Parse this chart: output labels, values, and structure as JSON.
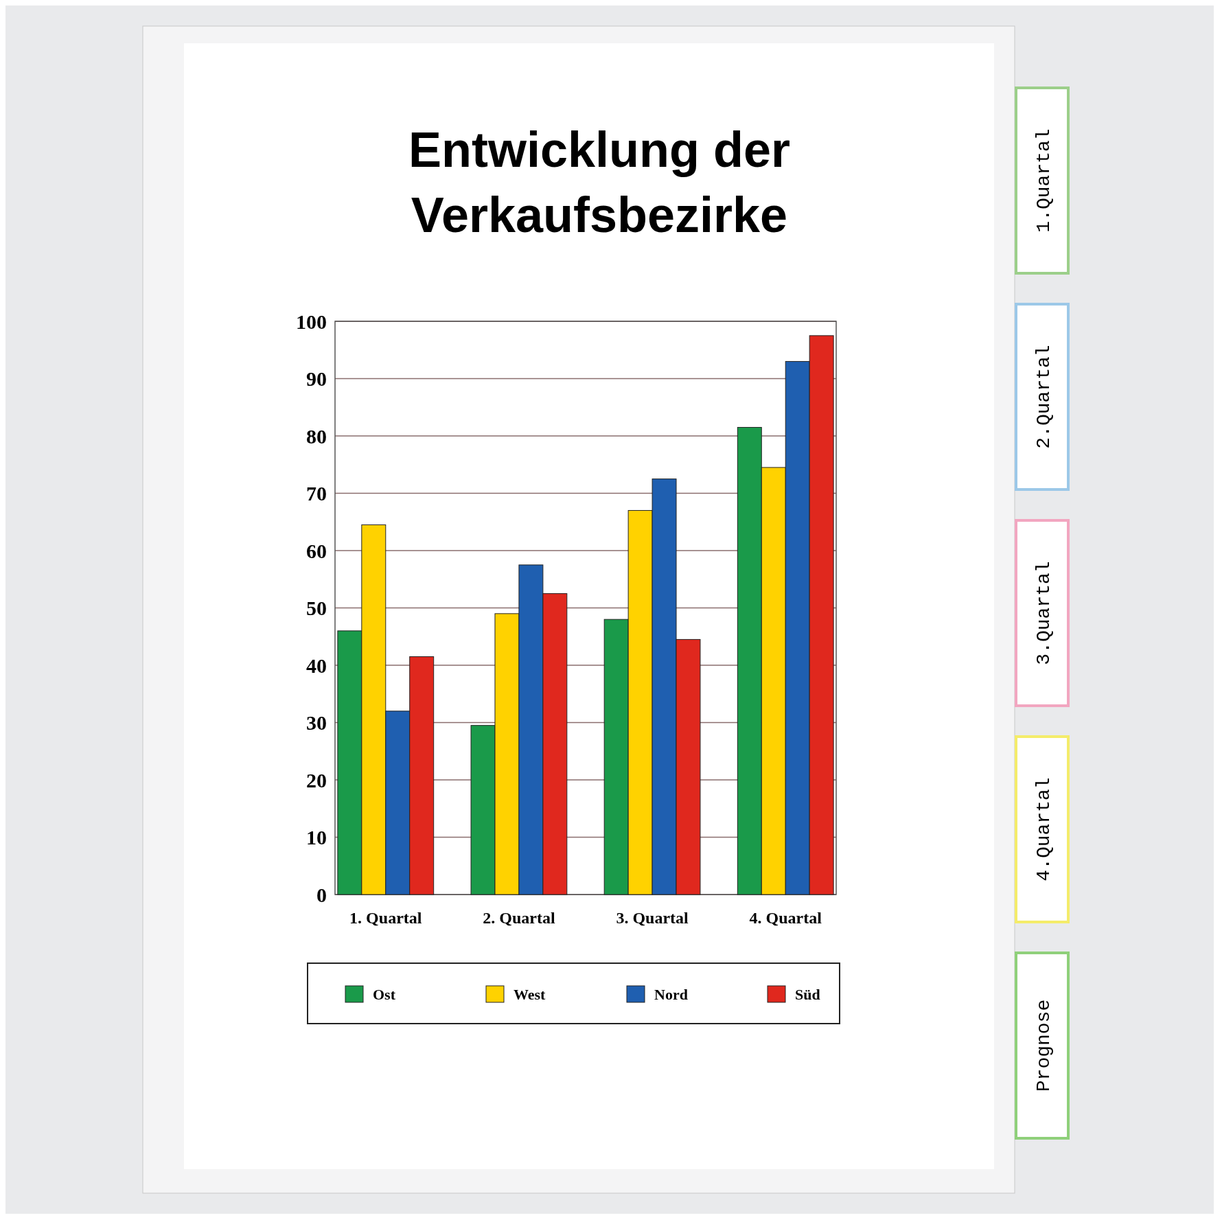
{
  "chart_data": {
    "type": "bar",
    "title": "Entwicklung der Verkaufsbezirke",
    "categories": [
      "1. Quartal",
      "2. Quartal",
      "3. Quartal",
      "4. Quartal"
    ],
    "series": [
      {
        "name": "Ost",
        "color": "#1a9a4a",
        "values": [
          46,
          29.5,
          48,
          81.5
        ]
      },
      {
        "name": "West",
        "color": "#ffd200",
        "values": [
          64.5,
          49,
          67,
          74.5
        ]
      },
      {
        "name": "Nord",
        "color": "#1f5fb0",
        "values": [
          32,
          57.5,
          72.5,
          93
        ]
      },
      {
        "name": "Süd",
        "color": "#e0281e",
        "values": [
          41.5,
          52.5,
          44.5,
          97.5
        ]
      }
    ],
    "ylim": [
      0,
      100
    ],
    "yticks": [
      0,
      10,
      20,
      30,
      40,
      50,
      60,
      70,
      80,
      90,
      100
    ],
    "grid": "y",
    "legend": "bottom",
    "annotations": [
      "1.Quartal",
      "2.Quartal",
      "3.Quartal",
      "4.Quartal",
      "Prognose"
    ]
  }
}
